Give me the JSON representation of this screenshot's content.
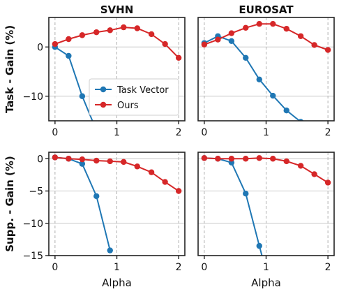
{
  "chart_data": [
    {
      "type": "line",
      "panel": "top-left",
      "title": "SVHN",
      "ylabel": "Task - Gain (%)",
      "xlabel": "",
      "xlim": [
        -0.1,
        2.1
      ],
      "ylim": [
        -15,
        6
      ],
      "xticks": [
        0,
        1,
        2
      ],
      "yticks": [
        0,
        -10
      ],
      "vgrid": [
        0,
        1,
        2
      ],
      "hgrid": [
        0,
        -10
      ],
      "legend": "inside-lower-left",
      "series": [
        {
          "name": "Task Vector",
          "color": "#1f77b4",
          "x": [
            0,
            0.22,
            0.44,
            0.67
          ],
          "y": [
            0,
            -1.8,
            -10,
            -17
          ]
        },
        {
          "name": "Ours",
          "color": "#d62728",
          "x": [
            0,
            0.22,
            0.44,
            0.67,
            0.89,
            1.11,
            1.33,
            1.56,
            1.78,
            2.0
          ],
          "y": [
            0.6,
            1.6,
            2.4,
            3.0,
            3.4,
            4.0,
            3.8,
            2.6,
            0.6,
            -2.2
          ]
        }
      ]
    },
    {
      "type": "line",
      "panel": "top-right",
      "title": "EUROSAT",
      "ylabel": "",
      "xlabel": "",
      "xlim": [
        -0.1,
        2.1
      ],
      "ylim": [
        -15,
        6
      ],
      "xticks": [
        0,
        1,
        2
      ],
      "yticks": [],
      "vgrid": [
        0,
        1,
        2
      ],
      "hgrid": [
        0,
        -10
      ],
      "series": [
        {
          "name": "Task Vector",
          "color": "#1f77b4",
          "x": [
            0,
            0.22,
            0.44,
            0.67,
            0.89,
            1.11,
            1.33,
            1.56,
            1.7
          ],
          "y": [
            0.8,
            2.2,
            1.2,
            -2.2,
            -6.6,
            -9.9,
            -12.9,
            -15.2,
            -16.5
          ]
        },
        {
          "name": "Ours",
          "color": "#d62728",
          "x": [
            0,
            0.22,
            0.44,
            0.67,
            0.89,
            1.11,
            1.33,
            1.56,
            1.78,
            2.0
          ],
          "y": [
            0.5,
            1.5,
            2.8,
            3.9,
            4.7,
            4.7,
            3.7,
            2.2,
            0.4,
            -0.6
          ]
        }
      ]
    },
    {
      "type": "line",
      "panel": "bottom-left",
      "title": "",
      "ylabel": "Supp. - Gain (%)",
      "xlabel": "Alpha",
      "xlim": [
        -0.1,
        2.1
      ],
      "ylim": [
        -15,
        1
      ],
      "xticks": [
        0,
        1,
        2
      ],
      "yticks": [
        0,
        -5,
        -10,
        -15
      ],
      "vgrid": [
        0,
        1,
        2
      ],
      "hgrid": [
        0,
        -5,
        -10
      ],
      "series": [
        {
          "name": "Task Vector",
          "color": "#1f77b4",
          "x": [
            0,
            0.22,
            0.44,
            0.67,
            0.89
          ],
          "y": [
            0.2,
            0,
            -0.8,
            -5.8,
            -14.2
          ]
        },
        {
          "name": "Ours",
          "color": "#d62728",
          "x": [
            0,
            0.22,
            0.44,
            0.67,
            0.89,
            1.11,
            1.33,
            1.56,
            1.78,
            2.0
          ],
          "y": [
            0.2,
            0,
            -0.1,
            -0.3,
            -0.4,
            -0.5,
            -1.2,
            -2.1,
            -3.6,
            -5.0
          ]
        }
      ]
    },
    {
      "type": "line",
      "panel": "bottom-right",
      "title": "",
      "ylabel": "",
      "xlabel": "Alpha",
      "xlim": [
        -0.1,
        2.1
      ],
      "ylim": [
        -15,
        1
      ],
      "xticks": [
        0,
        1,
        2
      ],
      "yticks": [],
      "vgrid": [
        0,
        1,
        2
      ],
      "hgrid": [
        0,
        -5,
        -10
      ],
      "series": [
        {
          "name": "Task Vector",
          "color": "#1f77b4",
          "x": [
            0,
            0.22,
            0.44,
            0.67,
            0.89,
            0.96
          ],
          "y": [
            0.1,
            0,
            -0.6,
            -5.4,
            -13.5,
            -16
          ]
        },
        {
          "name": "Ours",
          "color": "#d62728",
          "x": [
            0,
            0.22,
            0.44,
            0.67,
            0.89,
            1.11,
            1.33,
            1.56,
            1.78,
            2.0
          ],
          "y": [
            0.1,
            0,
            0,
            0,
            0.1,
            0,
            -0.4,
            -1.1,
            -2.4,
            -3.7
          ]
        }
      ]
    }
  ],
  "legend": {
    "entries": [
      {
        "name": "Task Vector",
        "color": "#1f77b4"
      },
      {
        "name": "Ours",
        "color": "#d62728"
      }
    ]
  }
}
